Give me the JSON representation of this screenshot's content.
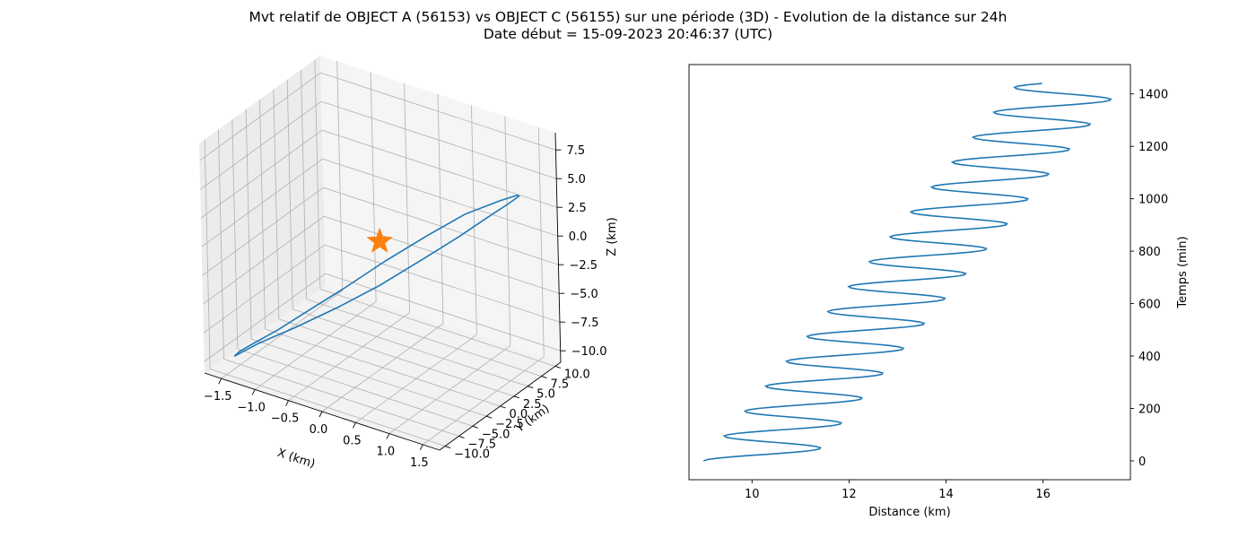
{
  "title": {
    "line1": "Mvt relatif de OBJECT A (56153) vs OBJECT C (56155) sur une période (3D) - Evolution de la distance sur 24h",
    "line2": "Date début = 15-09-2023 20:46:37 (UTC)"
  },
  "chart_data": [
    {
      "type": "line3d",
      "xlabel": "X (km)",
      "ylabel": "Y (km)",
      "zlabel": "Z (km)",
      "x_ticks": [
        "−1.5",
        "−1.0",
        "−0.5",
        "0.0",
        "0.5",
        "1.0",
        "1.5"
      ],
      "y_ticks": [
        "−10.0",
        "−7.5",
        "−5.0",
        "−2.5",
        "0.0",
        "2.5",
        "5.0",
        "7.5",
        "10.0"
      ],
      "z_ticks": [
        "−10.0",
        "−7.5",
        "−5.0",
        "−2.5",
        "0.0",
        "2.5",
        "5.0",
        "7.5"
      ],
      "xlim": [
        -1.75,
        1.75
      ],
      "ylim": [
        -11,
        11
      ],
      "zlim": [
        -11,
        9
      ],
      "grid": true,
      "marker": {
        "shape": "star",
        "x": 0,
        "y": 0,
        "z": 0,
        "color": "#ff7f0e"
      },
      "series": [
        {
          "color": "#1f77b4",
          "x": [
            -1.55,
            -1.45,
            -1.2,
            -0.85,
            -0.45,
            0.0,
            0.45,
            0.85,
            1.2,
            1.45,
            1.55,
            1.5,
            1.25,
            0.95,
            0.55,
            0.1,
            -0.35,
            -0.75,
            -1.1,
            -1.4,
            -1.55
          ],
          "y": [
            -8.0,
            -4.8,
            -1.2,
            2.3,
            5.2,
            7.5,
            8.8,
            9.2,
            8.8,
            7.8,
            6.3,
            3.8,
            0.5,
            -2.8,
            -5.6,
            -7.8,
            -9.2,
            -9.7,
            -9.4,
            -8.8,
            -8.0
          ],
          "z": [
            -10.2,
            -10.0,
            -9.4,
            -8.2,
            -6.5,
            -4.2,
            -1.8,
            0.5,
            2.5,
            4.0,
            4.8,
            5.1,
            4.6,
            3.3,
            1.3,
            -1.2,
            -3.6,
            -5.8,
            -7.6,
            -9.2,
            -10.2
          ]
        }
      ]
    },
    {
      "type": "line",
      "xlabel": "Distance (km)",
      "ylabel": "Temps (min)",
      "xlim": [
        8.7,
        17.8
      ],
      "ylim": [
        -72,
        1512
      ],
      "x_ticks": [
        10,
        12,
        14,
        16
      ],
      "y_ticks": [
        0,
        200,
        400,
        600,
        800,
        1000,
        1200,
        1400
      ],
      "series": [
        {
          "color": "#1f77b4",
          "samples_per_min": 0.2,
          "x_start": 9.0,
          "x_slope_per_min": 0.0045,
          "amplitude": 1.1,
          "period_min": 95,
          "t_end": 1440
        }
      ]
    }
  ]
}
